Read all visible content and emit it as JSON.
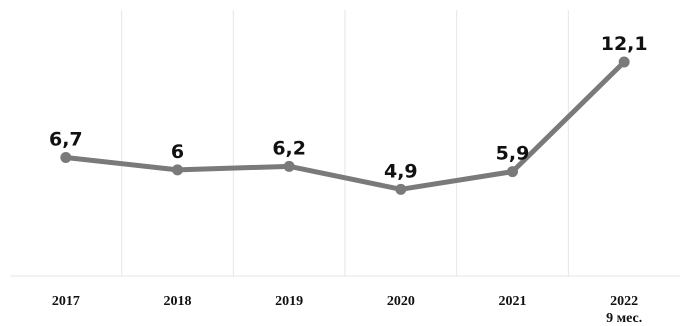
{
  "chart_data": {
    "type": "line",
    "categories": [
      "2017",
      "2018",
      "2019",
      "2020",
      "2021",
      "2022"
    ],
    "category_sublabels": [
      "",
      "",
      "",
      "",
      "",
      "9 мес."
    ],
    "series": [
      {
        "values": [
          6.7,
          6,
          6.2,
          4.9,
          5.9,
          12.1
        ],
        "data_labels": [
          "6,7",
          "6",
          "6,2",
          "4,9",
          "5,9",
          "12,1"
        ]
      }
    ],
    "ylim": [
      0,
      14
    ],
    "grid": "vertical",
    "legend": "none",
    "colors": {
      "line": "#7a7a7a",
      "grid": "#e6e6e6",
      "text": "#111111"
    }
  }
}
